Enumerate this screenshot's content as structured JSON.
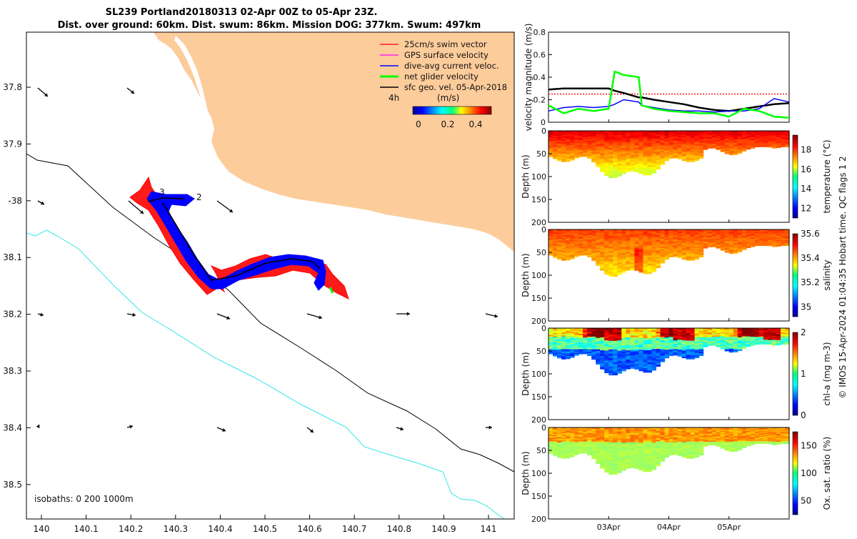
{
  "title": {
    "line1": "SL239 Portland20180313 02-Apr 00Z to 05-Apr 23Z.",
    "line2": "Dist. over ground: 60km. Dist. swum: 86km. Mission DOG: 377km. Swum: 497km"
  },
  "map": {
    "lon_ticks": [
      "140",
      "140.1",
      "140.2",
      "140.3",
      "140.4",
      "140.5",
      "140.6",
      "140.7",
      "140.8",
      "140.9",
      "141"
    ],
    "lat_ticks": [
      "37.8",
      "37.9",
      "-38",
      "38.1",
      "38.2",
      "38.3",
      "38.4",
      "38.5"
    ],
    "track_labels": [
      "3",
      "2"
    ],
    "isobaths_label": "isobaths: 0   200  1000m",
    "legend": [
      {
        "label": "25cm/s swim vector",
        "color": "#ff0000"
      },
      {
        "label": "GPS surface velocity",
        "color": "#ff00ff"
      },
      {
        "label": "dive-avg current veloc.",
        "color": "#0000ff"
      },
      {
        "label": "net glider velocity",
        "color": "#00ff00"
      },
      {
        "label": "sfc geo. vel. 05-Apr-2018",
        "color": "#000000"
      }
    ],
    "colorbar": {
      "left_label": "4h",
      "units": "(m/s)",
      "ticks": [
        "0",
        "0.2",
        "0.4"
      ]
    },
    "colors": {
      "land": "#fdcc9b",
      "isobath_200": "#000000",
      "isobath_1000": "#33e6e6",
      "track_red": "#ff0000",
      "track_blue": "#0000ff"
    }
  },
  "chart_data": [
    {
      "type": "line",
      "ylabel": "velocity magnitude (m/s)",
      "ylim": [
        0,
        0.8
      ],
      "yticks": [
        "0",
        "0.2",
        "0.4",
        "0.6",
        "0.8"
      ],
      "xticks": [
        "03Apr",
        "04Apr",
        "05Apr"
      ],
      "x_days": [
        2.0,
        2.25,
        2.5,
        2.75,
        3.0,
        3.1,
        3.25,
        3.5,
        3.55,
        3.75,
        4.0,
        4.25,
        4.5,
        4.75,
        5.0,
        5.25,
        5.5,
        5.75,
        6.0
      ],
      "series": [
        {
          "name": "25cm/s swim vector",
          "color": "#ff0000",
          "values": [
            0.25,
            0.25,
            0.25,
            0.25,
            0.25,
            0.25,
            0.25,
            0.25,
            0.25,
            0.25,
            0.25,
            0.25,
            0.25,
            0.25,
            0.25,
            0.25,
            0.25,
            0.25,
            0.25
          ]
        },
        {
          "name": "sfc geo. vel.",
          "color": "#000000",
          "values": [
            0.29,
            0.3,
            0.3,
            0.3,
            0.3,
            0.28,
            0.26,
            0.22,
            0.22,
            0.2,
            0.18,
            0.16,
            0.13,
            0.11,
            0.1,
            0.12,
            0.14,
            0.16,
            0.17
          ]
        },
        {
          "name": "dive-avg current veloc.",
          "color": "#0000ff",
          "values": [
            0.1,
            0.13,
            0.14,
            0.13,
            0.14,
            0.16,
            0.2,
            0.18,
            0.15,
            0.13,
            0.11,
            0.1,
            0.1,
            0.09,
            0.1,
            0.1,
            0.12,
            0.21,
            0.18
          ]
        },
        {
          "name": "net glider velocity",
          "color": "#00ff00",
          "values": [
            0.15,
            0.08,
            0.12,
            0.1,
            0.12,
            0.45,
            0.42,
            0.4,
            0.15,
            0.12,
            0.1,
            0.09,
            0.08,
            0.08,
            0.05,
            0.12,
            0.1,
            0.05,
            0.04
          ]
        }
      ]
    },
    {
      "type": "heatmap",
      "ylabel": "Depth (m)",
      "variable": "temperature (°C)",
      "cbar_ticks": [
        "12",
        "14",
        "16",
        "18"
      ],
      "vmin": 11,
      "vmax": 19.5,
      "ylim": [
        200,
        0
      ],
      "yticks": [
        "0",
        "50",
        "100",
        "150",
        "200"
      ]
    },
    {
      "type": "heatmap",
      "ylabel": "Depth (m)",
      "variable": "salinity",
      "cbar_ticks": [
        "35",
        "35.2",
        "35.4",
        "35.6"
      ],
      "vmin": 34.92,
      "vmax": 35.6,
      "ylim": [
        200,
        0
      ],
      "yticks": [
        "0",
        "50",
        "100",
        "150",
        "200"
      ]
    },
    {
      "type": "heatmap",
      "ylabel": "Depth (m)",
      "variable": "chl-a (mg m-3)",
      "cbar_ticks": [
        "0",
        "1",
        "2"
      ],
      "vmin": 0,
      "vmax": 2,
      "ylim": [
        200,
        0
      ],
      "yticks": [
        "0",
        "50",
        "100",
        "150",
        "200"
      ]
    },
    {
      "type": "heatmap",
      "ylabel": "Depth (m)",
      "variable": "Ox. sat. ratio (%)",
      "cbar_ticks": [
        "50",
        "100",
        "150"
      ],
      "vmin": 25,
      "vmax": 175,
      "ylim": [
        200,
        0
      ],
      "yticks": [
        "0",
        "50",
        "100",
        "150",
        "200"
      ]
    }
  ],
  "footer": "© IMOS 15-Apr-2024 01:04:35 Hobart time. QC flags 1  2"
}
